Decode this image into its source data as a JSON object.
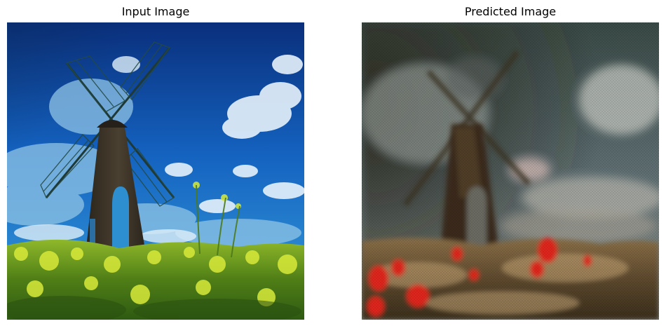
{
  "panels": [
    {
      "title": "Input Image",
      "image": "windmill-photo"
    },
    {
      "title": "Predicted Image",
      "image": "windmill-photo-stylized"
    }
  ],
  "colors": {
    "background": "#ffffff",
    "title_text": "#000000",
    "input_sky_top": "#0b3f96",
    "input_sky_bottom": "#2f8fd8",
    "input_field": "#6e9a1e",
    "input_flowers": "#d5e640",
    "input_tower": "#3a3328",
    "predicted_sky": "#5a6c72",
    "predicted_field": "#6b5436",
    "predicted_poppies": "#e0251c",
    "predicted_tower": "#2a2016"
  }
}
